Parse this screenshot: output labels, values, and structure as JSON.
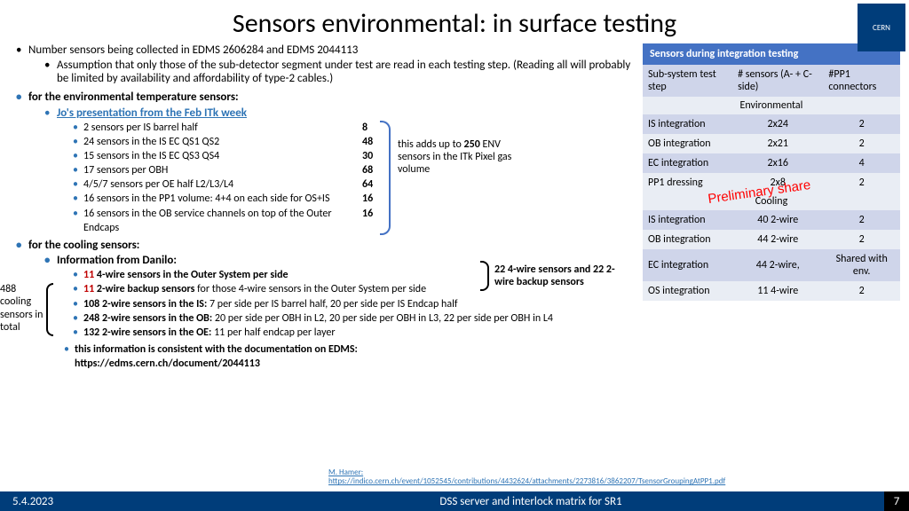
{
  "title": "Sensors environmental: in surface testing",
  "logo_text": "CERN",
  "intro1": "Number sensors being collected in EDMS 2606284 and EDMS 2044113",
  "intro2": "Assumption that only those of the sub-detector segment under test are read in each testing step. (Reading all will probably be limited by availability and affordability of type-2 cables.)",
  "env_header": "for the environmental temperature sensors:",
  "env_link": "Jo's presentation from the Feb ITk week",
  "env_items": [
    "2 sensors per IS barrel half",
    "24 sensors in the IS EC QS1 QS2",
    "15 sensors in the IS EC QS3 QS4",
    "17 sensors per OBH",
    "4/5/7 sensors per OE half L2/L3/L4",
    "16 sensors in the PP1 volume: 4+4 on each side for OS+IS",
    "16 sensors in the OB service channels on top of the Outer Endcaps"
  ],
  "env_nums": [
    "8",
    "48",
    "30",
    "68",
    "64",
    "16",
    "16"
  ],
  "env_note_1": "this adds up to",
  "env_note_2": "250",
  "env_note_3": "ENV sensors in the ITk Pixel gas volume",
  "cool_header": "for the cooling sensors:",
  "cool_sub": "Information from Danilo:",
  "cool_items_html": [
    "<span class='red11'>11</span> <b>4-wire sensors in the Outer System per side</b>",
    "<span class='red11'>11</span> <b>2-wire backup sensors</b> for those 4-wire sensors in the Outer System per side",
    "<b>108 2-wire sensors in the IS:</b> 7 per side per IS barrel half, 20 per side per IS Endcap half",
    "<b>248 2-wire sensors in the OB:</b> 20 per side per OBH in L2, 20 per side per OBH in L3, 22 per side per OBH in L4",
    "<b>132 2-wire sensors in the OE:</b> 11 per half endcap per layer"
  ],
  "cool_total": "488 cooling sensors in total",
  "cool_backup": "22 4-wire sensors and 22 2-wire backup sensors",
  "edms_line1": "this information is consistent with the documentation on EDMS:",
  "edms_line2": "https://edms.cern.ch/document/2044113",
  "ref1": "M. Hamer:",
  "ref2": "https://indico.cern.ch/event/1052545/contributions/4432624/attachments/2273816/3862207/TsensorGroupingAtPP1.pdf",
  "tbl_title": "Sensors during integration testing",
  "hdr": [
    "Sub-system test step",
    "# sensors (A- + C-side)",
    "#PP1 connectors"
  ],
  "sub1": "Environmental",
  "env_rows": [
    [
      "IS integration",
      "2x24",
      "2"
    ],
    [
      "OB integration",
      "2x21",
      "2"
    ],
    [
      "EC integration",
      "2x16",
      "4"
    ],
    [
      "PP1 dressing",
      "2x8",
      "2"
    ]
  ],
  "sub2": "Cooling",
  "cool_rows": [
    [
      "IS integration",
      "40 2-wire",
      "2"
    ],
    [
      "OB integration",
      "44 2-wire",
      "2"
    ],
    [
      "EC integration",
      "44 2-wire,",
      "Shared with env."
    ],
    [
      "OS integration",
      "11 4-wire",
      "2"
    ]
  ],
  "prelim": "Preliminary share",
  "footer_date": "5.4.2023",
  "footer_center": "DSS server and interlock matrix for SR1",
  "footer_page": "7"
}
